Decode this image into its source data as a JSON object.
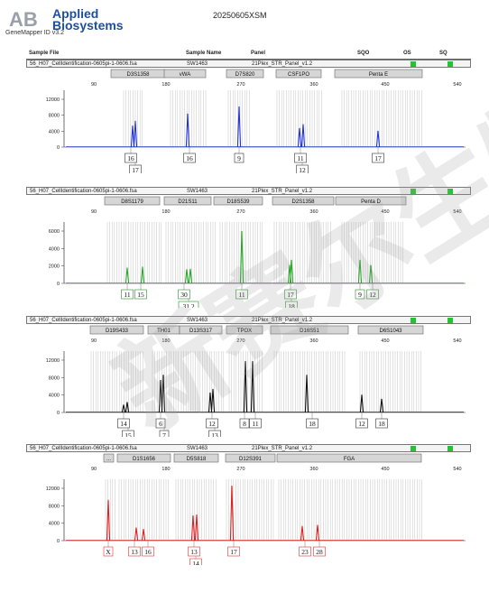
{
  "brand": {
    "line1": "Applied",
    "line2": "Biosystems",
    "logo_text": "AB"
  },
  "app": {
    "version": "GeneMapper ID v3.2"
  },
  "run": {
    "title": "20250605XSM"
  },
  "columns": {
    "sample_file": "Sample File",
    "sample_name": "Sample Name",
    "panel": "Panel",
    "sqo": "SQO",
    "os": "OS",
    "sq": "SQ"
  },
  "colors": {
    "blue": "#2233dd",
    "green": "#27a827",
    "black": "#111111",
    "red": "#e02020",
    "quality_ok": "#27c234",
    "bin_gray": "#bbbbbb"
  },
  "panels": [
    {
      "sample_file": "56_H07_CellIdentification-0605pi-1-0606.fsa",
      "sample_name": "SW1463",
      "panel": "21Plex_STR_Panel_v1.2",
      "dye": "blue",
      "y_ticks": [
        "12000",
        "8000",
        "4000",
        "0"
      ],
      "x_ticks": [
        "90",
        "180",
        "270",
        "360",
        "450",
        "540"
      ],
      "loci": [
        "D3S1358",
        "vWA",
        "D7S820",
        "CSF1PO",
        "Penta E"
      ],
      "alleles_top": [
        "16",
        "16",
        "9",
        "11",
        "17"
      ],
      "alleles_bottom": [
        "17",
        "12"
      ]
    },
    {
      "sample_file": "56_H07_CellIdentification-0605pi-1-0606.fsa",
      "sample_name": "SW1463",
      "panel": "21Plex_STR_Panel_v1.2",
      "dye": "green",
      "y_ticks": [
        "6000",
        "4000",
        "2000",
        "0"
      ],
      "x_ticks": [
        "90",
        "180",
        "270",
        "360",
        "450",
        "540"
      ],
      "loci": [
        "D8S1179",
        "D21S11",
        "D18S539",
        "D2S1358",
        "Penta D"
      ],
      "alleles_top": [
        "11",
        "15",
        "30",
        "11",
        "17",
        "9",
        "12"
      ],
      "alleles_bottom": [
        "31.2",
        "18"
      ]
    },
    {
      "sample_file": "56_H07_CellIdentification-0605pi-1-0606.fsa",
      "sample_name": "SW1463",
      "panel": "21Plex_STR_Panel_v1.2",
      "dye": "black",
      "y_ticks": [
        "12000",
        "8000",
        "4000",
        "0"
      ],
      "x_ticks": [
        "90",
        "180",
        "270",
        "360",
        "450",
        "540"
      ],
      "loci": [
        "D19S433",
        "TH01",
        "D13S317",
        "TPOX",
        "D16S51",
        "D6S1043"
      ],
      "alleles_top": [
        "14",
        "6",
        "12",
        "8",
        "11",
        "18",
        "12",
        "18"
      ],
      "alleles_bottom": [
        "15",
        "7",
        "13"
      ]
    },
    {
      "sample_file": "56_H07_CellIdentification-0605pi-1-0606.fsa",
      "sample_name": "SW1463",
      "panel": "21Plex_STR_Panel_v1.2",
      "dye": "red",
      "y_ticks": [
        "12000",
        "8000",
        "4000",
        "0"
      ],
      "x_ticks": [
        "90",
        "180",
        "270",
        "360",
        "450",
        "540"
      ],
      "loci": [
        "...",
        "D1S1656",
        "D5S818",
        "D12S391",
        "FGA"
      ],
      "alleles_top": [
        "X",
        "13",
        "16",
        "13",
        "17",
        "23",
        "28"
      ],
      "alleles_bottom": [
        "14"
      ]
    }
  ],
  "watermark": {
    "text": "新赛尔生物"
  }
}
